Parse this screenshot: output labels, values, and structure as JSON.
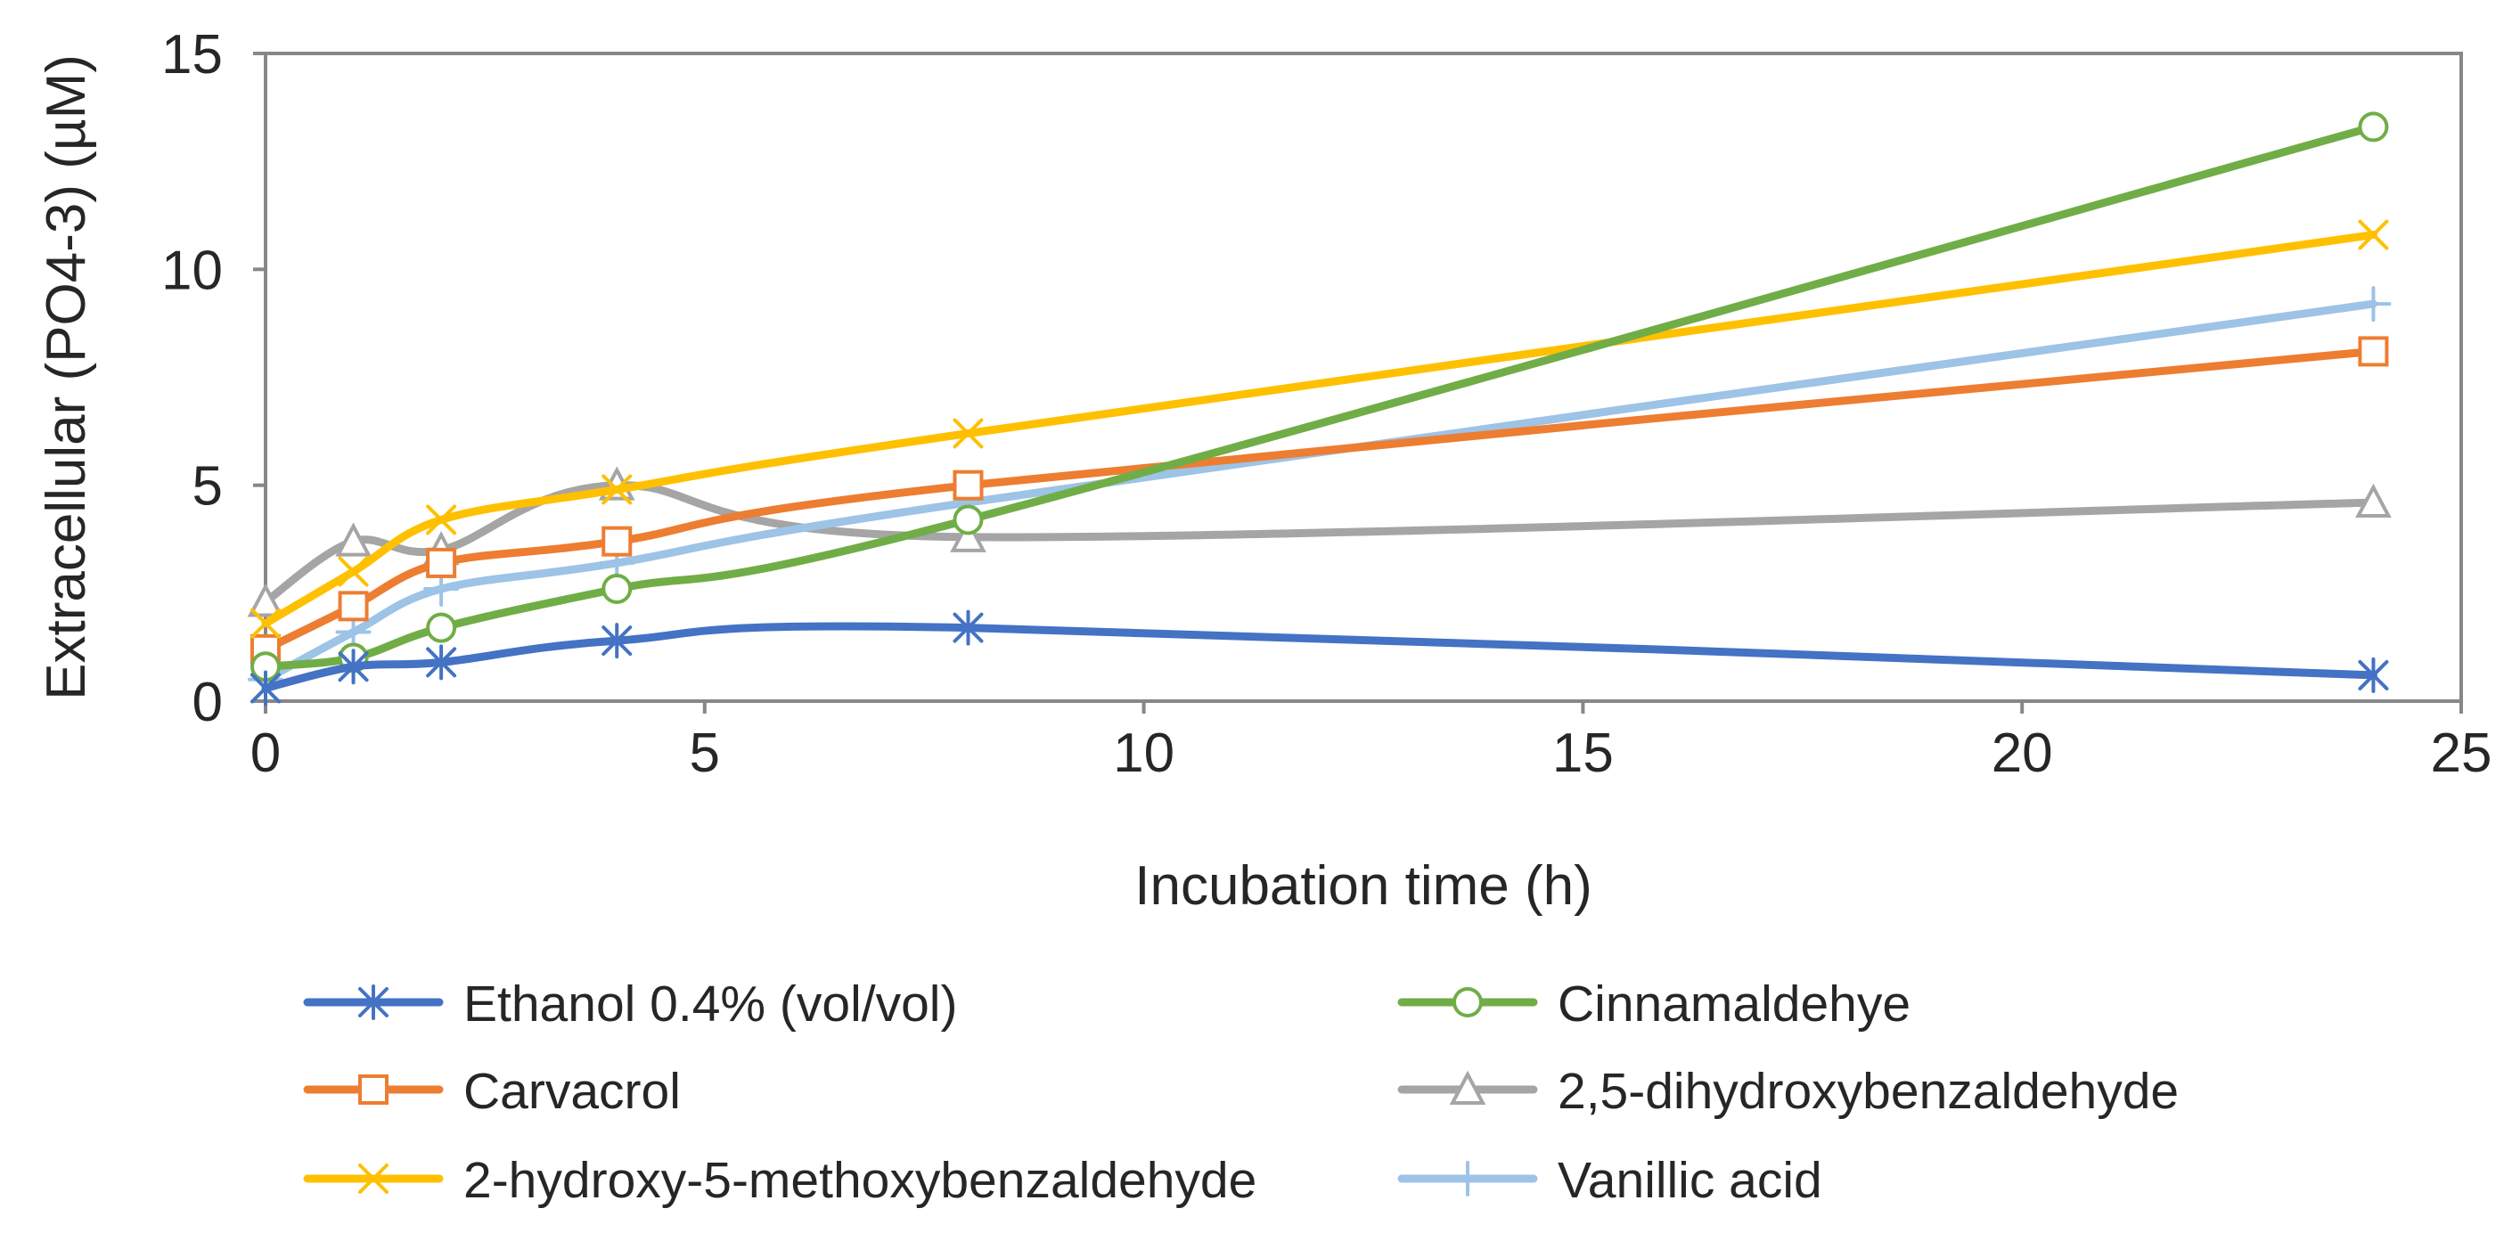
{
  "chart_data": {
    "type": "line",
    "title": "",
    "xlabel": "Incubation time (h)",
    "ylabel": "Extracellular (PO4-3) (µM)",
    "xlim": [
      0,
      25
    ],
    "ylim": [
      0,
      15
    ],
    "xticks": [
      0,
      5,
      10,
      15,
      20,
      25
    ],
    "yticks": [
      0,
      5,
      10,
      15
    ],
    "xtick_labels": [
      "0",
      "5",
      "10",
      "15",
      "20",
      "25"
    ],
    "ytick_labels": [
      "0",
      "5",
      "10",
      "15"
    ],
    "grid": false,
    "legend_position": "bottom",
    "x": [
      0,
      1,
      2,
      4,
      8,
      24
    ],
    "series": [
      {
        "name": "Ethanol 0.4% (vol/vol)",
        "color": "#4472C4",
        "marker": "asterisk",
        "values": [
          0.3,
          0.8,
          0.9,
          1.4,
          1.7,
          0.6
        ]
      },
      {
        "name": "Cinnamaldehye",
        "color": "#70AD47",
        "marker": "circle",
        "values": [
          0.8,
          1.0,
          1.7,
          2.6,
          4.2,
          13.3
        ]
      },
      {
        "name": "Carvacrol",
        "color": "#ED7D31",
        "marker": "square",
        "values": [
          1.2,
          2.2,
          3.2,
          3.7,
          5.0,
          8.1
        ]
      },
      {
        "name": "2,5-dihydroxybenzaldehyde",
        "color": "#A5A5A5",
        "marker": "triangle",
        "values": [
          2.3,
          3.7,
          3.5,
          5.0,
          3.8,
          4.6
        ]
      },
      {
        "name": "2-hydroxy-5-methoxybenzaldehyde",
        "color": "#FFC000",
        "marker": "x",
        "values": [
          1.8,
          3.0,
          4.2,
          4.9,
          6.2,
          10.8
        ]
      },
      {
        "name": "Vanillic acid",
        "color": "#9DC3E6",
        "marker": "plus",
        "values": [
          0.5,
          1.6,
          2.6,
          3.2,
          4.6,
          9.2
        ]
      }
    ],
    "draw_order": [
      3,
      5,
      2,
      4,
      1,
      0
    ]
  }
}
